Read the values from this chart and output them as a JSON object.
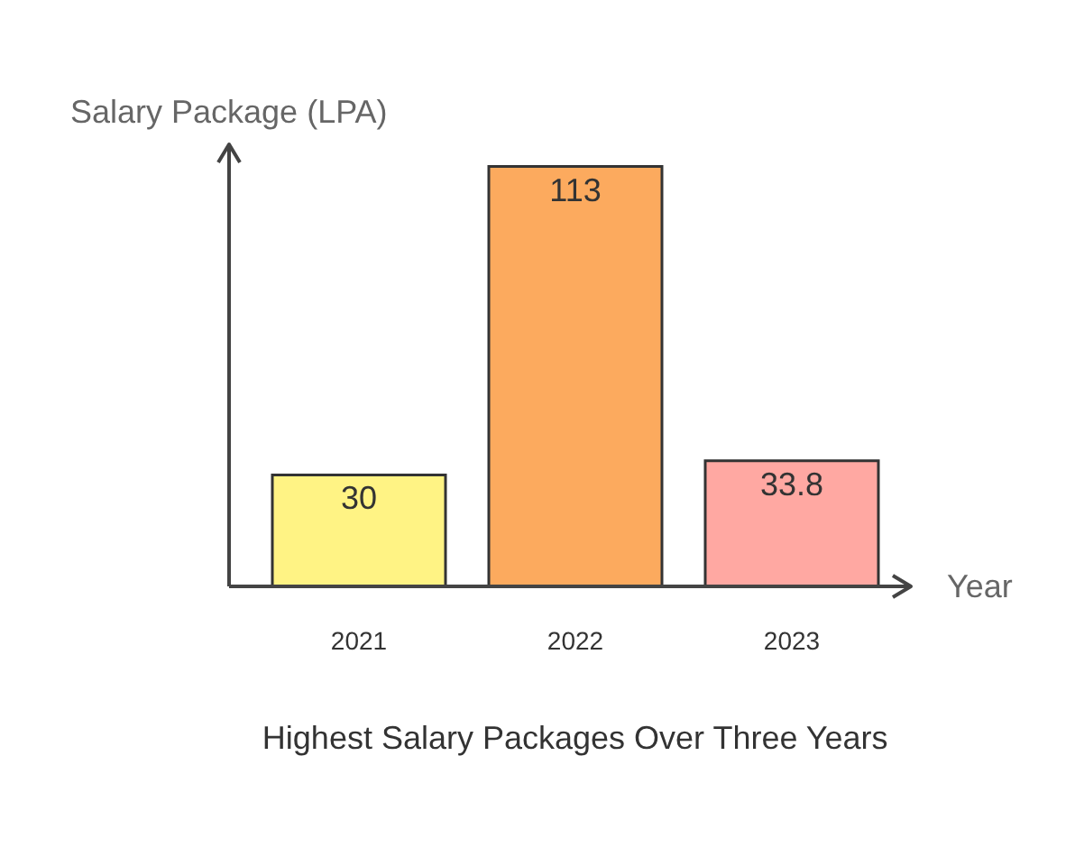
{
  "chart_data": {
    "type": "bar",
    "title": "Highest Salary Packages Over Three Years",
    "xlabel": "Year",
    "ylabel": "Salary Package (LPA)",
    "categories": [
      "2021",
      "2022",
      "2023"
    ],
    "values": [
      30,
      113,
      33.8
    ],
    "colors": [
      "#fff384",
      "#fcaa5e",
      "#ffa8a2"
    ],
    "data_labels": true,
    "grid": false,
    "legend": false,
    "tick_labels": "x"
  }
}
